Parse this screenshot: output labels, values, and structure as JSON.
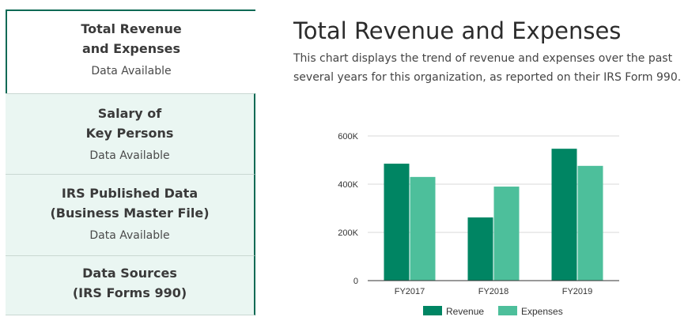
{
  "sidebar": {
    "items": [
      {
        "title": "Total Revenue\nand Expenses",
        "status": "Data Available",
        "active": true
      },
      {
        "title": "Salary of\nKey Persons",
        "status": "Data Available",
        "active": false
      },
      {
        "title": "IRS Published Data\n(Business Master File)",
        "status": "Data Available",
        "active": false
      },
      {
        "title": "Data Sources\n(IRS Forms 990)",
        "status": "",
        "active": false
      }
    ]
  },
  "main": {
    "title": "Total Revenue and Expenses",
    "description": "This chart displays the trend of revenue and expenses over the past several years for this organization, as reported on their IRS Form 990."
  },
  "colors": {
    "accent": "#0e6a55",
    "revenue": "#008563",
    "expenses": "#4dbf9b",
    "tab_bg": "#eaf6f2"
  },
  "chart_data": {
    "type": "bar",
    "categories": [
      "FY2017",
      "FY2018",
      "FY2019"
    ],
    "series": [
      {
        "name": "Revenue",
        "values": [
          485000,
          262000,
          547000
        ]
      },
      {
        "name": "Expenses",
        "values": [
          430000,
          390000,
          476000
        ]
      }
    ],
    "ylim": [
      0,
      600000
    ],
    "yticks": [
      0,
      200000,
      400000,
      600000
    ],
    "ytick_labels": [
      "0",
      "200K",
      "400K",
      "600K"
    ],
    "grid": true,
    "legend": "bottom"
  }
}
